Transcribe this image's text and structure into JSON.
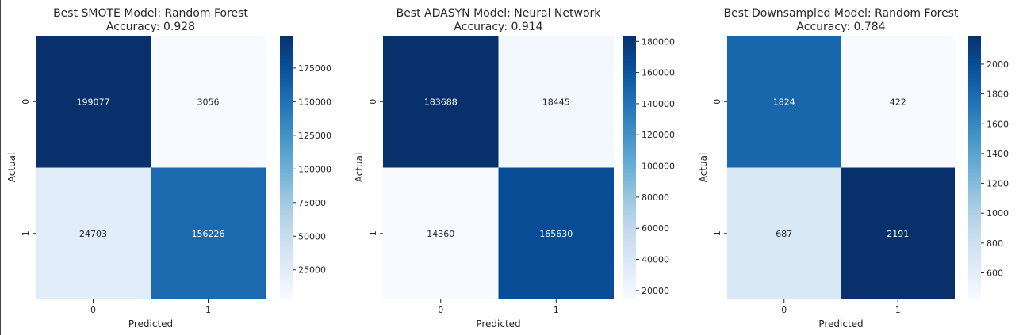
{
  "chart_data": [
    {
      "type": "heatmap",
      "title": "Best SMOTE Model: Random Forest",
      "subtitle": "Accuracy: 0.928",
      "xlabel": "Predicted",
      "ylabel": "Actual",
      "x_categories": [
        "0",
        "1"
      ],
      "y_categories": [
        "0",
        "1"
      ],
      "values": [
        [
          199077,
          3056
        ],
        [
          24703,
          156226
        ]
      ],
      "colormap": "Blues",
      "colorbar": {
        "range": [
          3056,
          199077
        ],
        "ticks": [
          25000,
          50000,
          75000,
          100000,
          125000,
          150000,
          175000
        ]
      }
    },
    {
      "type": "heatmap",
      "title": "Best ADASYN Model: Neural Network",
      "subtitle": "Accuracy: 0.914",
      "xlabel": "Predicted",
      "ylabel": "Actual",
      "x_categories": [
        "0",
        "1"
      ],
      "y_categories": [
        "0",
        "1"
      ],
      "values": [
        [
          183688,
          18445
        ],
        [
          14360,
          165630
        ]
      ],
      "colormap": "Blues",
      "colorbar": {
        "range": [
          14360,
          183688
        ],
        "ticks": [
          20000,
          40000,
          60000,
          80000,
          100000,
          120000,
          140000,
          160000,
          180000
        ]
      }
    },
    {
      "type": "heatmap",
      "title": "Best Downsampled Model: Random Forest",
      "subtitle": "Accuracy: 0.784",
      "xlabel": "Predicted",
      "ylabel": "Actual",
      "x_categories": [
        "0",
        "1"
      ],
      "y_categories": [
        "0",
        "1"
      ],
      "values": [
        [
          1824,
          422
        ],
        [
          687,
          2191
        ]
      ],
      "colormap": "Blues",
      "colorbar": {
        "range": [
          422,
          2191
        ],
        "ticks": [
          600,
          800,
          1000,
          1200,
          1400,
          1600,
          1800,
          2000
        ]
      }
    }
  ]
}
